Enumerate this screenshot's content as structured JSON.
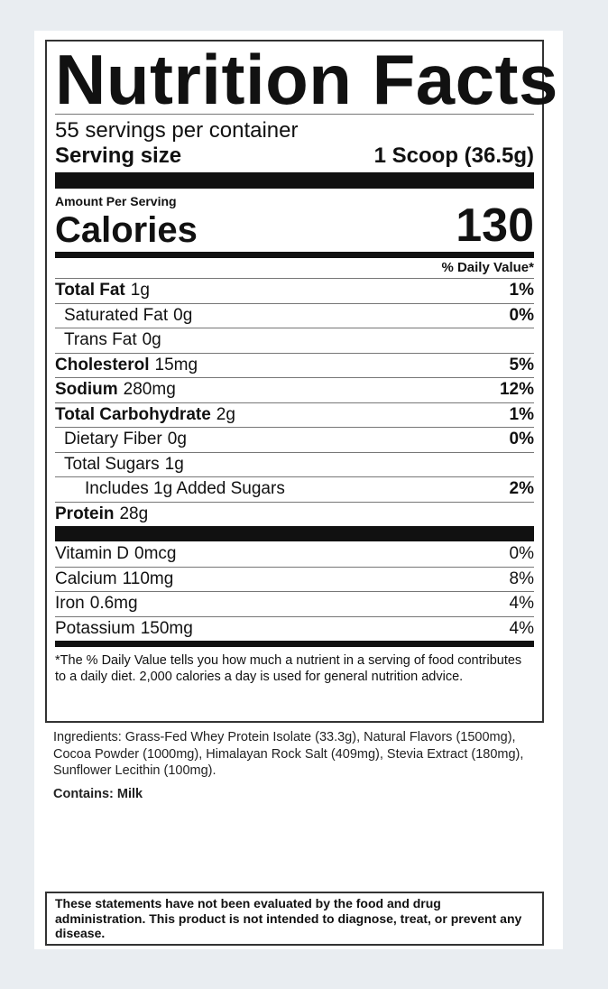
{
  "title": "Nutrition Facts",
  "servings_per_container": "55 servings per container",
  "serving_size": {
    "label": "Serving size",
    "value": "1 Scoop (36.5g)"
  },
  "amount_per_serving": "Amount Per Serving",
  "calories": {
    "label": "Calories",
    "value": "130"
  },
  "daily_value_header": "% Daily Value*",
  "nutrients": [
    {
      "name": "Total Fat",
      "amount": "1g",
      "dv": "1%"
    },
    {
      "name": "Saturated Fat",
      "amount": "0g",
      "dv": "0%"
    },
    {
      "name": "Trans Fat",
      "amount": "0g",
      "dv": ""
    },
    {
      "name": "Cholesterol",
      "amount": "15mg",
      "dv": "5%"
    },
    {
      "name": "Sodium",
      "amount": "280mg",
      "dv": "12%"
    },
    {
      "name": "Total Carbohydrate",
      "amount": "2g",
      "dv": "1%"
    },
    {
      "name": "Dietary Fiber",
      "amount": "0g",
      "dv": "0%"
    },
    {
      "name": "Total Sugars",
      "amount": "1g",
      "dv": ""
    },
    {
      "name": "Includes 1g Added Sugars",
      "amount": "",
      "dv": "2%"
    },
    {
      "name": "Protein",
      "amount": "28g",
      "dv": ""
    }
  ],
  "vitamins": [
    {
      "name": "Vitamin D",
      "amount": "0mcg",
      "dv": "0%"
    },
    {
      "name": "Calcium",
      "amount": "110mg",
      "dv": "8%"
    },
    {
      "name": "Iron",
      "amount": "0.6mg",
      "dv": "4%"
    },
    {
      "name": "Potassium",
      "amount": "150mg",
      "dv": "4%"
    }
  ],
  "footnote": "*The % Daily Value tells you how much a nutrient in a serving of food contributes to a daily diet. 2,000 calories a day is used for general nutrition advice.",
  "ingredients": "Ingredients: Grass-Fed Whey Protein Isolate (33.3g), Natural Flavors (1500mg), Cocoa Powder (1000mg), Himalayan Rock Salt (409mg), Stevia Extract (180mg), Sunflower Lecithin (100mg).",
  "contains": "Contains: Milk",
  "disclaimer": "These statements have not been evaluated by the food and drug administration. This product is not intended to diagnose, treat, or prevent any disease."
}
